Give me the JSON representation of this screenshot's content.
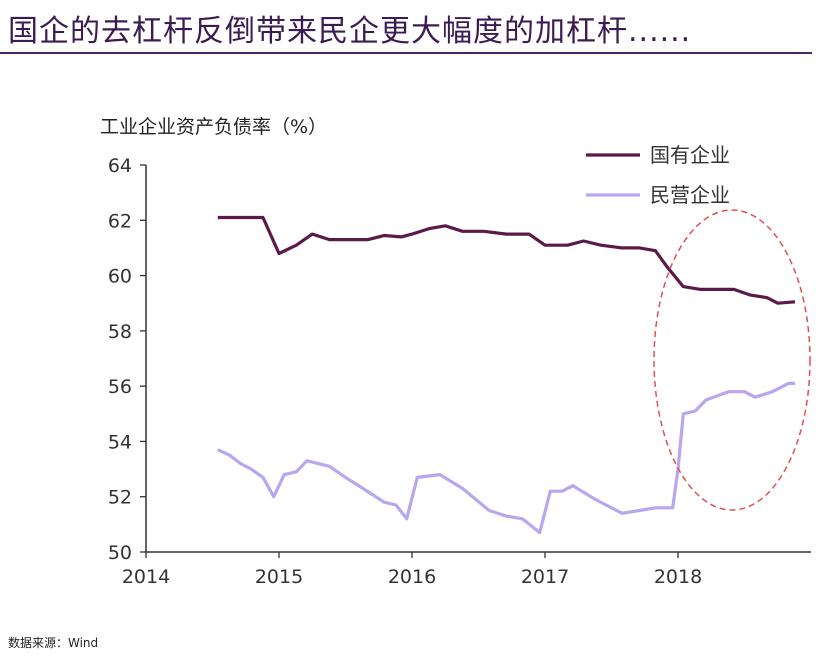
{
  "header": {
    "title": "国企的去杠杆反倒带来民企更大幅度的加杠杆......"
  },
  "footer": {
    "source": "数据来源：Wind"
  },
  "colors": {
    "title": "#3a1b52",
    "series_soe": "#5c1a4a",
    "series_private": "#b9a6f0",
    "ellipse": "#e05050"
  },
  "chart_data": {
    "type": "line",
    "ylabel": "工业企业资产负债率（%）",
    "xlabel": "",
    "xlim": [
      2014,
      2019
    ],
    "ylim": [
      50,
      64
    ],
    "x_ticks": [
      "2014",
      "2015",
      "2016",
      "2017",
      "2018"
    ],
    "y_ticks": [
      "50",
      "52",
      "54",
      "56",
      "58",
      "60",
      "62",
      "64"
    ],
    "legend_position": "top-right",
    "annotation": "dashed ellipse highlighting 2018",
    "series": [
      {
        "name": "国有企业",
        "x": [
          2014.54,
          2014.63,
          2014.71,
          2014.79,
          2014.88,
          2015.0,
          2015.13,
          2015.25,
          2015.38,
          2015.5,
          2015.67,
          2015.79,
          2015.92,
          2016.0,
          2016.13,
          2016.25,
          2016.38,
          2016.54,
          2016.71,
          2016.88,
          2017.0,
          2017.17,
          2017.29,
          2017.42,
          2017.58,
          2017.71,
          2017.83,
          2017.92,
          2018.04,
          2018.17,
          2018.29,
          2018.42,
          2018.54,
          2018.67,
          2018.75,
          2018.88
        ],
        "y": [
          62.1,
          62.1,
          62.1,
          62.1,
          62.1,
          60.8,
          61.1,
          61.5,
          61.3,
          61.3,
          61.3,
          61.45,
          61.4,
          61.5,
          61.7,
          61.8,
          61.6,
          61.6,
          61.5,
          61.5,
          61.1,
          61.1,
          61.25,
          61.1,
          61.0,
          61.0,
          60.9,
          60.3,
          59.6,
          59.5,
          59.5,
          59.5,
          59.3,
          59.2,
          59.0,
          59.05
        ]
      },
      {
        "name": "民营企业",
        "x": [
          2014.54,
          2014.63,
          2014.71,
          2014.79,
          2014.88,
          2014.96,
          2015.04,
          2015.13,
          2015.21,
          2015.38,
          2015.5,
          2015.63,
          2015.79,
          2015.88,
          2015.96,
          2016.04,
          2016.21,
          2016.38,
          2016.58,
          2016.71,
          2016.83,
          2016.96,
          2017.04,
          2017.13,
          2017.21,
          2017.38,
          2017.58,
          2017.71,
          2017.83,
          2017.96,
          2018.0,
          2018.04,
          2018.13,
          2018.21,
          2018.38,
          2018.5,
          2018.58,
          2018.71,
          2018.83,
          2018.88
        ],
        "y": [
          53.7,
          53.5,
          53.2,
          53.0,
          52.7,
          52.0,
          52.8,
          52.9,
          53.3,
          53.1,
          52.7,
          52.3,
          51.8,
          51.7,
          51.2,
          52.7,
          52.8,
          52.3,
          51.5,
          51.3,
          51.2,
          50.7,
          52.2,
          52.2,
          52.4,
          51.9,
          51.4,
          51.5,
          51.6,
          51.6,
          53.0,
          55.0,
          55.1,
          55.5,
          55.8,
          55.8,
          55.6,
          55.8,
          56.1,
          56.1
        ]
      }
    ]
  }
}
